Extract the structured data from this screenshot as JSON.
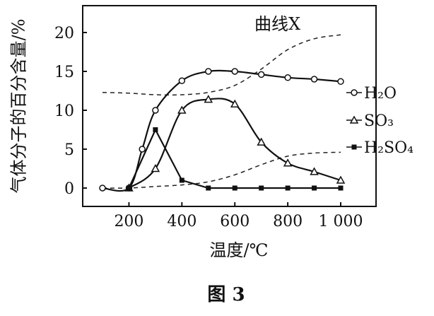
{
  "chart_data": {
    "type": "line",
    "xlabel": "温度/℃",
    "ylabel": "气体分子的百分含量/%",
    "xlim": [
      0,
      1000
    ],
    "ylim": [
      -2,
      22
    ],
    "x_ticks": [
      "200",
      "400",
      "600",
      "800",
      "1 000"
    ],
    "y_ticks": [
      "0",
      "5",
      "10",
      "15",
      "20"
    ],
    "annotation": "曲线X",
    "caption": "图 3",
    "series": [
      {
        "name": "H₂O",
        "marker": "circle",
        "x": [
          100,
          200,
          250,
          300,
          400,
          500,
          600,
          700,
          800,
          900,
          1000
        ],
        "y": [
          0,
          0,
          5,
          10,
          13.8,
          15,
          15,
          14.6,
          14.2,
          14,
          13.7
        ]
      },
      {
        "name": "SO₃",
        "marker": "triangle",
        "x": [
          200,
          300,
          400,
          500,
          600,
          700,
          800,
          900,
          1000
        ],
        "y": [
          0,
          2.5,
          10,
          11.4,
          10.8,
          5.9,
          3.2,
          2.1,
          1
        ]
      },
      {
        "name": "H₂SO₄",
        "marker": "square",
        "x": [
          200,
          300,
          400,
          500,
          600,
          700,
          800,
          900,
          1000
        ],
        "y": [
          0,
          7.5,
          1,
          0,
          0,
          0,
          0,
          0,
          0
        ]
      }
    ],
    "dashed_curves": [
      {
        "x": [
          100,
          200,
          300,
          400,
          500,
          600,
          700,
          800,
          900,
          1000
        ],
        "y": [
          12.3,
          12.2,
          12.0,
          12.0,
          12.3,
          13.2,
          15.3,
          17.8,
          19.2,
          19.7
        ]
      },
      {
        "x": [
          100,
          200,
          300,
          400,
          500,
          600,
          700,
          800,
          900,
          1000
        ],
        "y": [
          0,
          0,
          0.2,
          0.4,
          0.8,
          1.7,
          3.0,
          4.1,
          4.5,
          4.6
        ]
      }
    ]
  }
}
